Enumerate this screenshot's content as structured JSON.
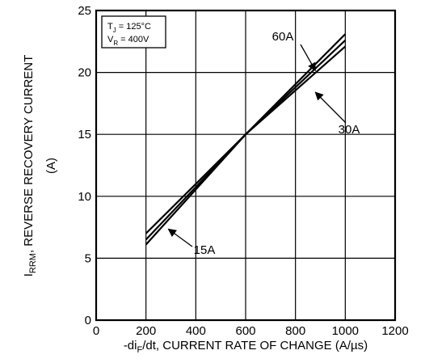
{
  "chart_data": {
    "type": "line",
    "xlabel": {
      "prefix": "-di",
      "sub": "F",
      "suffix": "/dt, CURRENT RATE OF CHANGE (A/µs)"
    },
    "ylabel": {
      "line1_main": "I",
      "line1_sub": "RRM",
      "line1_rest": ", REVERSE RECOVERY CURRENT",
      "line2": "(A)"
    },
    "xlim": [
      0,
      1200
    ],
    "ylim": [
      0,
      25
    ],
    "x_ticks": [
      0,
      200,
      400,
      600,
      800,
      1000,
      1200
    ],
    "y_ticks": [
      0,
      5,
      10,
      15,
      20,
      25
    ],
    "grid": true,
    "conditions": {
      "tj_main": "T",
      "tj_sub": "J",
      "tj_rest": " = 125°C",
      "vr_main": "V",
      "vr_sub": "R",
      "vr_rest": " = 400V"
    },
    "series": [
      {
        "name": "60A",
        "x": [
          200,
          600,
          1000
        ],
        "y": [
          6.1,
          15.0,
          23.1
        ]
      },
      {
        "name": "30A",
        "x": [
          200,
          600,
          1000
        ],
        "y": [
          6.5,
          15.0,
          22.6
        ]
      },
      {
        "name": "15A",
        "x": [
          200,
          600,
          1000
        ],
        "y": [
          7.0,
          15.0,
          22.1
        ]
      }
    ],
    "annotations": [
      {
        "text": "60A",
        "series": "60A",
        "x": 880,
        "y": 20.15
      },
      {
        "text": "30A",
        "series": "30A",
        "x": 880,
        "y": 18.4
      },
      {
        "text": "15A",
        "series": "15A",
        "x": 290,
        "y": 7.35
      }
    ]
  }
}
